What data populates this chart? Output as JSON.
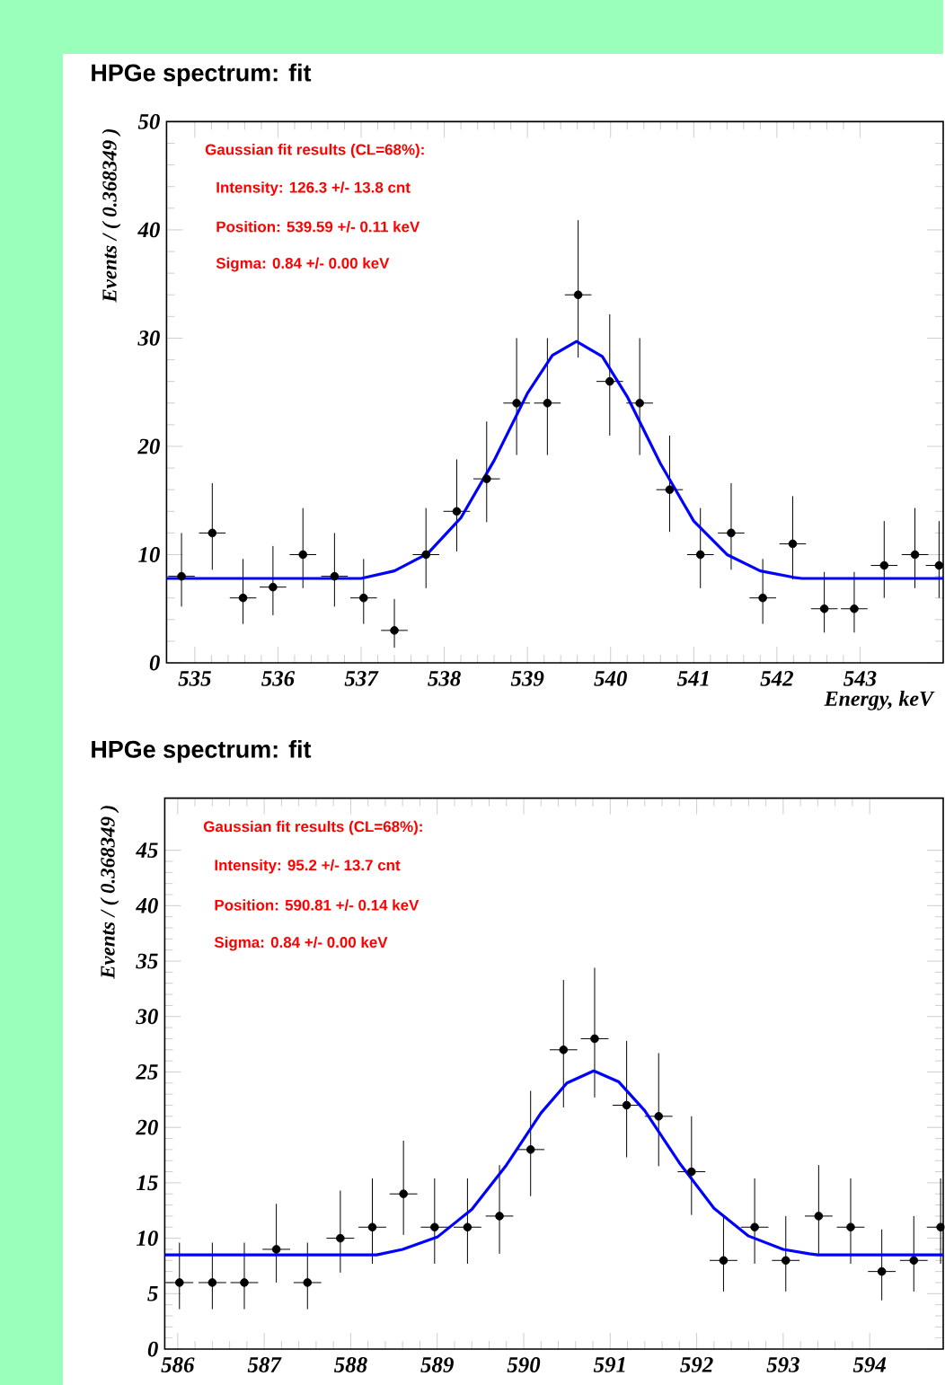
{
  "chart_data": [
    {
      "type": "scatter",
      "title": "HPGe spectrum: fit",
      "xlabel": "Energy, keV",
      "ylabel": "Events / ( 0.368349 )",
      "annotations": [
        "Gaussian fit results (CL=68%):",
        "Intensity: 126.3 +/- 13.8 cnt",
        "Position: 539.59 +/- 0.11 keV",
        "Sigma: 0.84 +/- 0.00 keV"
      ],
      "xlim": [
        534.66,
        544.0
      ],
      "ylim": [
        0,
        50
      ],
      "xticks": [
        535,
        536,
        537,
        538,
        539,
        540,
        541,
        542,
        543
      ],
      "yticks": [
        0,
        10,
        20,
        30,
        40,
        50
      ],
      "series": [
        {
          "color": "#000000",
          "x": [
            534.84,
            535.21,
            535.58,
            535.94,
            536.3,
            536.68,
            537.03,
            537.4,
            537.78,
            538.15,
            538.51,
            538.87,
            539.24,
            539.61,
            539.99,
            540.35,
            540.71,
            541.08,
            541.45,
            541.83,
            542.19,
            542.57,
            542.93,
            543.29,
            543.66,
            543.95
          ],
          "values": [
            8,
            12,
            6,
            7,
            10,
            8,
            6,
            3,
            10,
            14,
            17,
            24,
            24,
            34,
            26,
            24,
            16,
            10,
            12,
            6,
            11,
            5,
            5,
            9,
            10,
            9
          ],
          "errors": [
            [
              5.2,
              12.0
            ],
            [
              8.6,
              16.6
            ],
            [
              3.6,
              9.6
            ],
            [
              4.4,
              10.8
            ],
            [
              6.9,
              14.3
            ],
            [
              5.2,
              12.0
            ],
            [
              3.6,
              9.6
            ],
            [
              1.4,
              5.9
            ],
            [
              6.9,
              14.3
            ],
            [
              10.3,
              18.8
            ],
            [
              13.0,
              22.3
            ],
            [
              19.2,
              30.0
            ],
            [
              19.2,
              30.0
            ],
            [
              28.2,
              40.9
            ],
            [
              21.0,
              32.2
            ],
            [
              19.2,
              30.0
            ],
            [
              12.1,
              21.0
            ],
            [
              6.9,
              14.3
            ],
            [
              8.6,
              16.6
            ],
            [
              3.6,
              9.6
            ],
            [
              7.7,
              15.4
            ],
            [
              2.8,
              8.4
            ],
            [
              2.8,
              8.4
            ],
            [
              6.0,
              13.1
            ],
            [
              6.9,
              14.3
            ],
            [
              6.0,
              13.1
            ]
          ],
          "xerrors": [
            0.16,
            0.16,
            0.16,
            0.16,
            0.16,
            0.16,
            0.16,
            0.16,
            0.16,
            0.16,
            0.16,
            0.16,
            0.16,
            0.16,
            0.16,
            0.16,
            0.16,
            0.16,
            0.16,
            0.16,
            0.16,
            0.16,
            0.16,
            0.16,
            0.16,
            [
              543.79,
              544.0
            ]
          ]
        },
        {
          "type": "line",
          "color": "#0000ff",
          "x": [
            534.66,
            537.0,
            537.4,
            537.8,
            538.2,
            538.6,
            539.0,
            539.3,
            539.59,
            539.9,
            540.2,
            540.6,
            541.0,
            541.4,
            541.8,
            542.2,
            542.3,
            544.0
          ],
          "values": [
            7.8,
            7.8,
            8.5,
            10.1,
            13.4,
            18.7,
            24.9,
            28.4,
            29.7,
            28.3,
            24.6,
            18.4,
            13.1,
            10.0,
            8.5,
            7.9,
            7.8,
            7.8
          ]
        }
      ]
    },
    {
      "type": "scatter",
      "title": "HPGe spectrum: fit",
      "ylabel": "Events / ( 0.368349 )",
      "annotations": [
        "Gaussian fit results (CL=68%):",
        "Intensity: 95.2 +/- 13.7 cnt",
        "Position: 590.81 +/- 0.14 keV",
        "Sigma: 0.84 +/- 0.00 keV"
      ],
      "xlim": [
        585.85,
        594.85
      ],
      "ylim": [
        0,
        49.7
      ],
      "xticks": [
        586,
        587,
        588,
        589,
        590,
        591,
        592,
        593,
        594
      ],
      "yticks": [
        0,
        5,
        10,
        15,
        20,
        25,
        30,
        35,
        40,
        45
      ],
      "series": [
        {
          "color": "#000000",
          "x": [
            586.02,
            586.4,
            586.77,
            587.14,
            587.5,
            587.88,
            588.25,
            588.61,
            588.97,
            589.35,
            589.72,
            590.08,
            590.46,
            590.82,
            591.19,
            591.56,
            591.94,
            592.31,
            592.67,
            593.03,
            593.41,
            593.78,
            594.14,
            594.51,
            594.82
          ],
          "values": [
            6,
            6,
            6,
            9,
            6,
            10,
            11,
            14,
            11,
            11,
            12,
            18,
            27,
            28,
            22,
            21,
            16,
            8,
            11,
            8,
            12,
            11,
            7,
            8,
            11
          ],
          "errors": [
            [
              3.6,
              9.6
            ],
            [
              3.6,
              9.6
            ],
            [
              3.6,
              9.6
            ],
            [
              6.0,
              13.1
            ],
            [
              3.6,
              9.6
            ],
            [
              6.9,
              14.3
            ],
            [
              7.7,
              15.4
            ],
            [
              10.3,
              18.8
            ],
            [
              7.7,
              15.4
            ],
            [
              7.7,
              15.4
            ],
            [
              8.6,
              16.6
            ],
            [
              13.8,
              23.3
            ],
            [
              21.8,
              33.3
            ],
            [
              22.7,
              34.4
            ],
            [
              17.3,
              27.8
            ],
            [
              16.5,
              26.7
            ],
            [
              12.1,
              21.0
            ],
            [
              5.2,
              12.0
            ],
            [
              7.7,
              15.4
            ],
            [
              5.2,
              12.0
            ],
            [
              8.6,
              16.6
            ],
            [
              7.7,
              15.4
            ],
            [
              4.4,
              10.8
            ],
            [
              5.2,
              12.0
            ],
            [
              7.7,
              15.4
            ]
          ],
          "xerrors": [
            0.16,
            0.16,
            0.16,
            0.16,
            0.16,
            0.16,
            0.16,
            0.16,
            0.16,
            0.16,
            0.16,
            0.16,
            0.16,
            0.16,
            0.16,
            0.16,
            0.16,
            0.16,
            0.16,
            0.16,
            0.16,
            0.16,
            0.16,
            0.16,
            [
              594.66,
              594.85
            ]
          ]
        },
        {
          "type": "line",
          "color": "#0000ff",
          "x": [
            585.85,
            588.3,
            588.6,
            589.0,
            589.4,
            589.8,
            590.2,
            590.5,
            590.81,
            591.1,
            591.4,
            591.8,
            592.2,
            592.6,
            593.0,
            593.3,
            593.4,
            594.85
          ],
          "values": [
            8.5,
            8.5,
            9.0,
            10.1,
            12.6,
            16.6,
            21.3,
            24.0,
            25.1,
            24.1,
            21.5,
            16.8,
            12.7,
            10.2,
            9.0,
            8.6,
            8.5,
            8.5
          ]
        }
      ]
    }
  ]
}
